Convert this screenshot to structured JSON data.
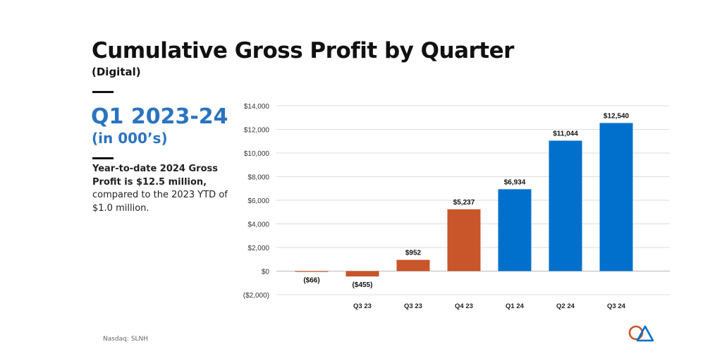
{
  "header": {
    "title": "Cumulative Gross Profit by Quarter",
    "subtitle": "(Digital)"
  },
  "sidebar": {
    "period": "Q1 2023-24",
    "units": "(in 000’s)",
    "desc_bold": "Year-to-date 2024 Gross Profit is $12.5 million,",
    "desc_normal": "compared to the 2023 YTD of $1.0 million."
  },
  "footer": {
    "ticker": "Nasdaq: SLNH"
  },
  "colors": {
    "negative_or_2023": "#C8562A",
    "year_2024": "#0070CC"
  },
  "chart_data": {
    "type": "bar",
    "title": "Cumulative Gross Profit by Quarter",
    "categories": [
      "",
      "Q3 23",
      "Q3 23",
      "Q4 23",
      "Q1 24",
      "Q2 24",
      "Q3 24"
    ],
    "values": [
      -66,
      -455,
      952,
      5237,
      6934,
      11044,
      12540
    ],
    "data_labels": [
      "($66)",
      "($455)",
      "$952",
      "$5,237",
      "$6,934",
      "$11,044",
      "$12,540"
    ],
    "bar_colors": [
      "#C8562A",
      "#C8562A",
      "#C8562A",
      "#C8562A",
      "#0070CC",
      "#0070CC",
      "#0070CC"
    ],
    "ylim": [
      -2000,
      14000
    ],
    "yticks": [
      -2000,
      0,
      2000,
      4000,
      6000,
      8000,
      10000,
      12000,
      14000
    ],
    "ytick_labels": [
      "($2,000)",
      "$0",
      "$2,000",
      "$4,000",
      "$6,000",
      "$8,000",
      "$10,000",
      "$12,000",
      "$14,000"
    ],
    "grid": true,
    "xlabel": "",
    "ylabel": ""
  }
}
